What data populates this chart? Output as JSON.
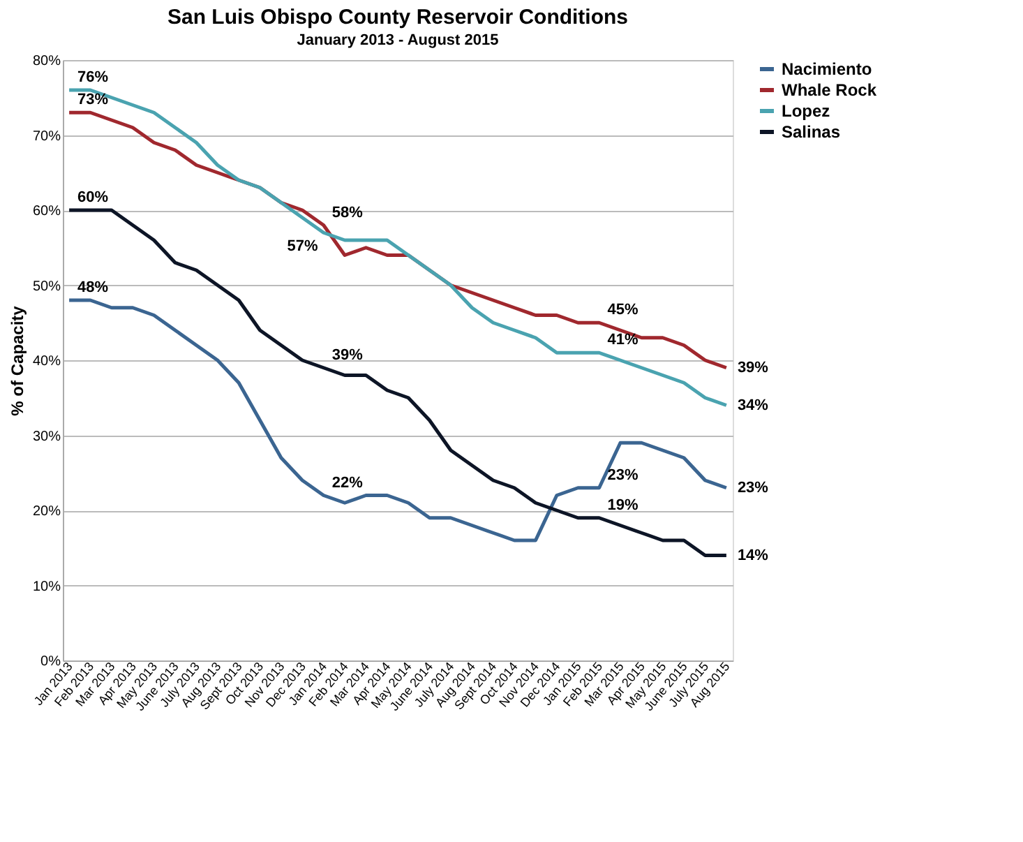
{
  "chart_data": {
    "type": "line",
    "title": "San Luis Obispo County Reservoir Conditions",
    "subtitle": "January 2013 - August 2015",
    "ylabel": "% of Capacity",
    "categories": [
      "Jan 2013",
      "Feb 2013",
      "Mar 2013",
      "Apr 2013",
      "May 2013",
      "June 2013",
      "July 2013",
      "Aug 2013",
      "Sept 2013",
      "Oct 2013",
      "Nov 2013",
      "Dec 2013",
      "Jan 2014",
      "Feb 2014",
      "Mar 2014",
      "Apr 2014",
      "May 2014",
      "June 2014",
      "July 2014",
      "Aug 2014",
      "Sept 2014",
      "Oct 2014",
      "Nov 2014",
      "Dec 2014",
      "Jan 2015",
      "Feb 2015",
      "Mar 2015",
      "Apr 2015",
      "May 2015",
      "June 2015",
      "July 2015",
      "Aug 2015"
    ],
    "series": [
      {
        "name": "Nacimiento",
        "color": "#3b6591",
        "values": [
          48,
          48,
          47,
          47,
          46,
          44,
          42,
          40,
          37,
          32,
          27,
          24,
          22,
          21,
          22,
          22,
          21,
          19,
          19,
          18,
          17,
          16,
          16,
          22,
          23,
          23,
          29,
          29,
          28,
          27,
          24,
          23
        ]
      },
      {
        "name": "Whale Rock",
        "color": "#a0282e",
        "values": [
          73,
          73,
          72,
          71,
          69,
          68,
          66,
          65,
          64,
          63,
          61,
          60,
          58,
          54,
          55,
          54,
          54,
          52,
          50,
          49,
          48,
          47,
          46,
          46,
          45,
          45,
          44,
          43,
          43,
          42,
          40,
          39
        ]
      },
      {
        "name": "Lopez",
        "color": "#4aa3b0",
        "values": [
          76,
          76,
          75,
          74,
          73,
          71,
          69,
          66,
          64,
          63,
          61,
          59,
          57,
          56,
          56,
          56,
          54,
          52,
          50,
          47,
          45,
          44,
          43,
          41,
          41,
          41,
          40,
          39,
          38,
          37,
          35,
          34
        ]
      },
      {
        "name": "Salinas",
        "color": "#0d1526",
        "values": [
          60,
          60,
          60,
          58,
          56,
          53,
          52,
          50,
          48,
          44,
          42,
          40,
          39,
          38,
          38,
          36,
          35,
          32,
          28,
          26,
          24,
          23,
          21,
          20,
          19,
          19,
          18,
          17,
          16,
          16,
          14,
          14
        ]
      }
    ],
    "ylim": [
      0,
      80
    ],
    "yticks": [
      {
        "value": 0,
        "label": "0%"
      },
      {
        "value": 10,
        "label": "10%"
      },
      {
        "value": 20,
        "label": "20%"
      },
      {
        "value": 30,
        "label": "30%"
      },
      {
        "value": 40,
        "label": "40%"
      },
      {
        "value": 50,
        "label": "50%"
      },
      {
        "value": 60,
        "label": "60%"
      },
      {
        "value": 70,
        "label": "70%"
      },
      {
        "value": 80,
        "label": "80%"
      }
    ],
    "grid": "y",
    "legend": "right",
    "annotations": [
      {
        "text": "76%",
        "x": "Jan 2013",
        "y": 76
      },
      {
        "text": "73%",
        "x": "Jan 2013",
        "y": 73
      },
      {
        "text": "60%",
        "x": "Jan 2013",
        "y": 60
      },
      {
        "text": "48%",
        "x": "Jan 2013",
        "y": 48
      },
      {
        "text": "58%",
        "x": "Jan 2014",
        "y": 58
      },
      {
        "text": "57%",
        "x": "Jan 2014",
        "y": 57
      },
      {
        "text": "39%",
        "x": "Jan 2014",
        "y": 39
      },
      {
        "text": "22%",
        "x": "Jan 2014",
        "y": 22
      },
      {
        "text": "45%",
        "x": "Feb 2015",
        "y": 45
      },
      {
        "text": "41%",
        "x": "Feb 2015",
        "y": 41
      },
      {
        "text": "23%",
        "x": "Feb 2015",
        "y": 23
      },
      {
        "text": "19%",
        "x": "Feb 2015",
        "y": 19
      },
      {
        "text": "39%",
        "x": "Aug 2015",
        "y": 39
      },
      {
        "text": "34%",
        "x": "Aug 2015",
        "y": 34
      },
      {
        "text": "23%",
        "x": "Aug 2015",
        "y": 23
      },
      {
        "text": "14%",
        "x": "Aug 2015",
        "y": 14
      }
    ]
  }
}
